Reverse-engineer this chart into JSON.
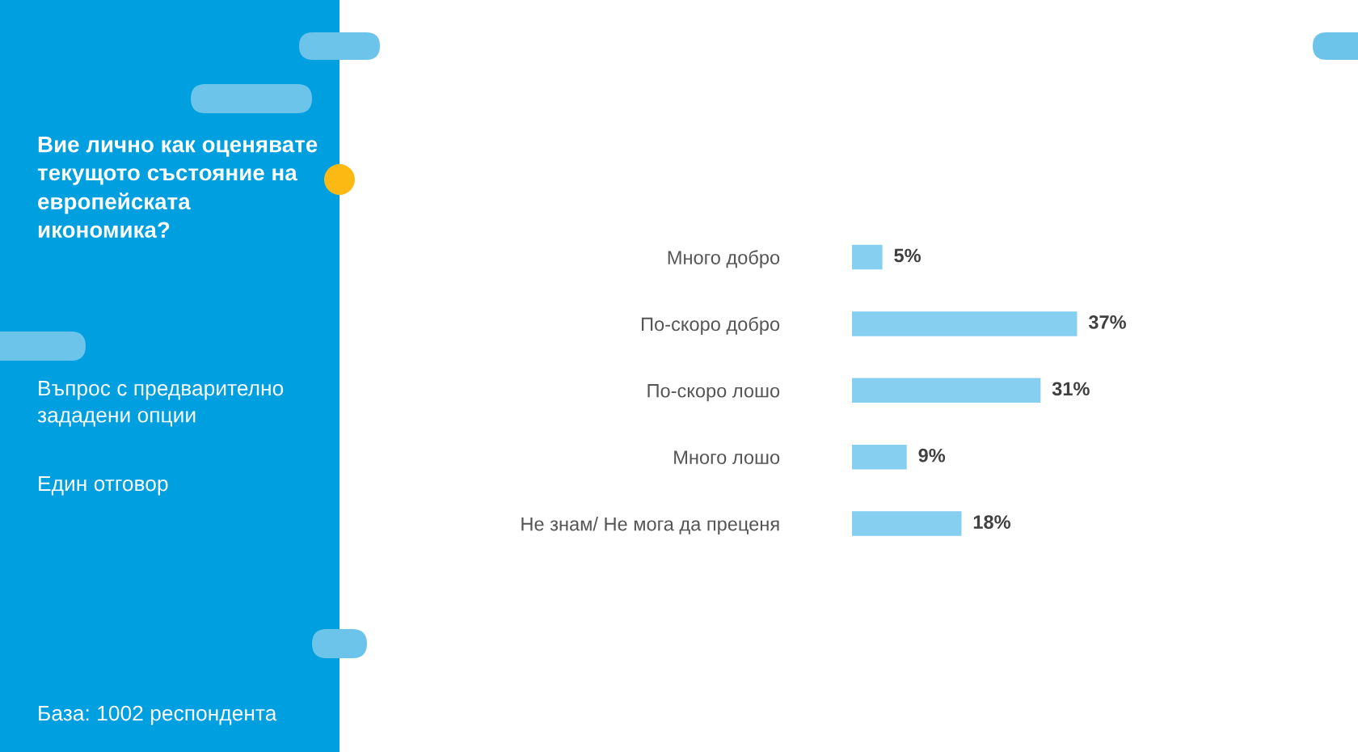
{
  "chart_data": {
    "type": "bar",
    "orientation": "horizontal",
    "title": "Вие лично как оценявате текущото състояние на европейската икономика?",
    "subtitle": "Въпрос с предварително зададени опции",
    "annotations": [
      "Един отговор",
      "База: 1002 респондента"
    ],
    "categories": [
      "Много добро",
      "По-скоро добро",
      "По-скоро лошо",
      "Много лошо",
      "Не знам/ Не мога да преценя"
    ],
    "values": [
      5,
      37,
      31,
      9,
      18
    ],
    "color": "#86cff0",
    "value_labels": [
      "5%",
      "37%",
      "31%",
      "9%",
      "18%"
    ]
  }
}
